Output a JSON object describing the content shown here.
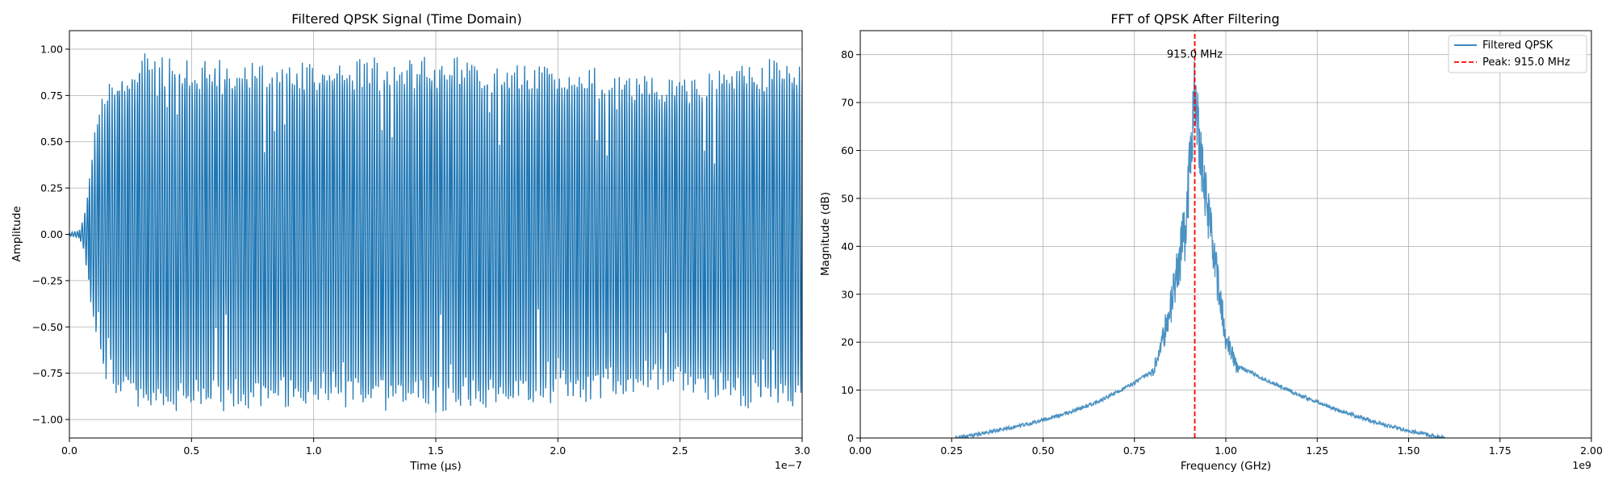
{
  "chart_data": [
    {
      "type": "line",
      "title": "Filtered QPSK Signal (Time Domain)",
      "xlabel": "Time (µs)",
      "ylabel": "Amplitude",
      "x_offset_text": "1e−7",
      "xlim": [
        0,
        3e-07
      ],
      "ylim": [
        -1.1,
        1.1
      ],
      "x_ticks": [
        0,
        5e-08,
        1e-07,
        1.5e-07,
        2e-07,
        2.5e-07,
        3e-07
      ],
      "x_tick_labels": [
        "0.0",
        "0.5",
        "1.0",
        "1.5",
        "2.0",
        "2.5",
        "3.0"
      ],
      "y_ticks": [
        -1.0,
        -0.75,
        -0.5,
        -0.25,
        0.0,
        0.25,
        0.5,
        0.75,
        1.0
      ],
      "y_tick_labels": [
        "−1.00",
        "−0.75",
        "−0.50",
        "−0.25",
        "0.00",
        "0.25",
        "0.50",
        "0.75",
        "1.00"
      ],
      "grid": true,
      "color": "#1f77b4",
      "series": [
        {
          "signal": "filtered QPSK carrier",
          "envelope_x": [
            0,
            4e-09,
            6e-09,
            8e-09,
            1e-08,
            1.2e-08,
            1.5e-08,
            2e-08,
            3e-08,
            5e-08,
            8e-08,
            1e-07,
            1.3e-07,
            1.6e-07,
            2e-07,
            2.3e-07,
            2.6e-07,
            2.9e-07,
            3e-07
          ],
          "envelope_y": [
            0.01,
            0.02,
            0.1,
            0.3,
            0.55,
            0.68,
            0.8,
            0.93,
            0.98,
            0.97,
            0.96,
            0.95,
            0.96,
            0.97,
            0.95,
            0.88,
            0.9,
            0.97,
            0.98
          ],
          "carrier_ghz": 0.915
        }
      ]
    },
    {
      "type": "line",
      "title": "FFT of QPSK After Filtering",
      "xlabel": "Frequency (GHz)",
      "ylabel": "Magnitude (dB)",
      "x_offset_text": "1e9",
      "xlim": [
        0,
        2000000000.0
      ],
      "ylim": [
        0,
        85
      ],
      "x_ticks": [
        0,
        250000000.0,
        500000000.0,
        750000000.0,
        1000000000.0,
        1250000000.0,
        1500000000.0,
        1750000000.0,
        2000000000.0
      ],
      "x_tick_labels": [
        "0.00",
        "0.25",
        "0.50",
        "0.75",
        "1.00",
        "1.25",
        "1.50",
        "1.75",
        "2.00"
      ],
      "y_ticks": [
        0,
        10,
        20,
        30,
        40,
        50,
        60,
        70,
        80
      ],
      "y_tick_labels": [
        "0",
        "10",
        "20",
        "30",
        "40",
        "50",
        "60",
        "70",
        "80"
      ],
      "grid": true,
      "legend": "top-right",
      "series": [
        {
          "name": "Filtered QPSK",
          "color": "#1f77b4",
          "x": [
            260000000.0,
            350000000.0,
            450000000.0,
            550000000.0,
            650000000.0,
            750000000.0,
            800000000.0,
            830000000.0,
            860000000.0,
            890000000.0,
            915000000.0,
            940000000.0,
            970000000.0,
            1000000000.0,
            1030000000.0,
            1100000000.0,
            1200000000.0,
            1300000000.0,
            1400000000.0,
            1500000000.0,
            1600000000.0
          ],
          "y": [
            0,
            1.2,
            2.8,
            4.8,
            7.5,
            11.5,
            14,
            22,
            33,
            46,
            75,
            55,
            38,
            22,
            15,
            12.5,
            9,
            6,
            3.5,
            1.5,
            0
          ]
        },
        {
          "name": "Peak: 915.0 MHz",
          "color": "#ff0000",
          "style": "dashed",
          "x": [
            915000000,
            915000000
          ],
          "y": [
            0,
            85
          ]
        }
      ],
      "annotations": [
        {
          "text": "915.0 MHz",
          "x": 915000000,
          "y": 80,
          "color": "#ff0000"
        }
      ]
    }
  ]
}
